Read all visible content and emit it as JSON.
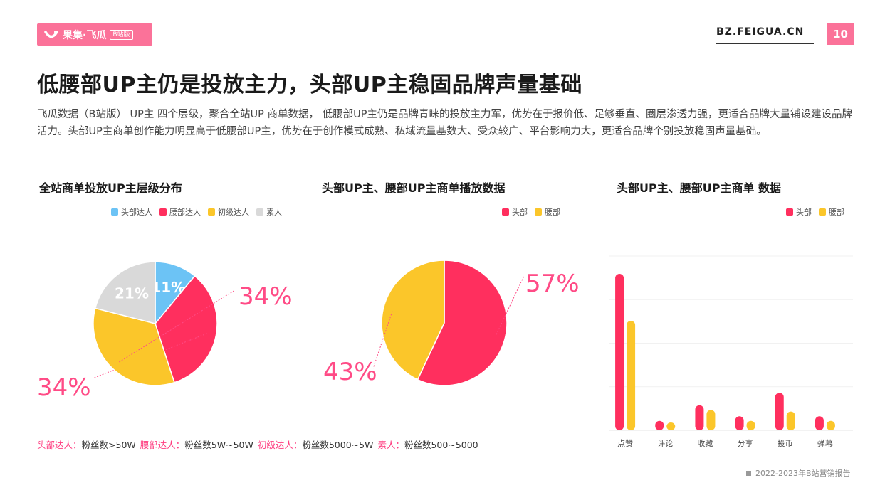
{
  "header": {
    "logo_text": "果集·飞瓜",
    "logo_badge": "B站版",
    "site": "BZ.FEIGUA.CN",
    "page_number": "10",
    "brand_color": "#fb7299"
  },
  "title": "低腰部UP主仍是投放主力，头部UP主稳固品牌声量基础",
  "intro": "飞瓜数据（B站版） UP主 四个层级，聚合全站UP 商单数据， 低腰部UP主仍是品牌青睐的投放主力军，优势在于报价低、足够垂直、圈层渗透力强，更适合品牌大量铺设建设品牌活力。头部UP主商单创作能力明显高于低腰部UP主，优势在于创作模式成熟、私域流量基数大、受众较广、平台影响力大，更适合品牌个别投放稳固声量基础。",
  "footnote": [
    {
      "key": "头部达人：",
      "value": "粉丝数>50W"
    },
    {
      "key": "腰部达人：",
      "value": "粉丝数5W~50W"
    },
    {
      "key": "初级达人：",
      "value": "粉丝数5000~5W"
    },
    {
      "key": "素人：",
      "value": "粉丝数500~5000"
    }
  ],
  "source": "2022-2023年B站营销报告",
  "chart_data": [
    {
      "type": "pie",
      "title": "全站商单投放UP主层级分布",
      "legend_position": "top-right",
      "categories": [
        "头部达人",
        "腰部达人",
        "初级达人",
        "素人"
      ],
      "values": [
        11,
        34,
        34,
        21
      ],
      "labels": [
        "11%",
        "34%",
        "34%",
        "21%"
      ],
      "colors": [
        "#6cc3f5",
        "#ff2f5e",
        "#fbc62a",
        "#d9d9d9"
      ]
    },
    {
      "type": "pie",
      "title": "头部UP主、腰部UP主商单播放数据",
      "legend_position": "top-right",
      "categories": [
        "头部",
        "腰部"
      ],
      "values": [
        57,
        43
      ],
      "labels": [
        "57%",
        "43%"
      ],
      "colors": [
        "#ff2f5e",
        "#fbc62a"
      ]
    },
    {
      "type": "bar",
      "title": "头部UP主、腰部UP主商单 数据",
      "legend_position": "top-right",
      "categories": [
        "点赞",
        "评论",
        "收藏",
        "分享",
        "投币",
        "弹幕"
      ],
      "series": [
        {
          "name": "头部",
          "values": [
            100,
            6,
            16,
            9,
            24,
            9
          ],
          "color": "#ff2f5e"
        },
        {
          "name": "腰部",
          "values": [
            70,
            5,
            13,
            6,
            12,
            6
          ],
          "color": "#fbc62a"
        }
      ],
      "ylim": [
        0,
        100
      ],
      "grid": true
    }
  ]
}
